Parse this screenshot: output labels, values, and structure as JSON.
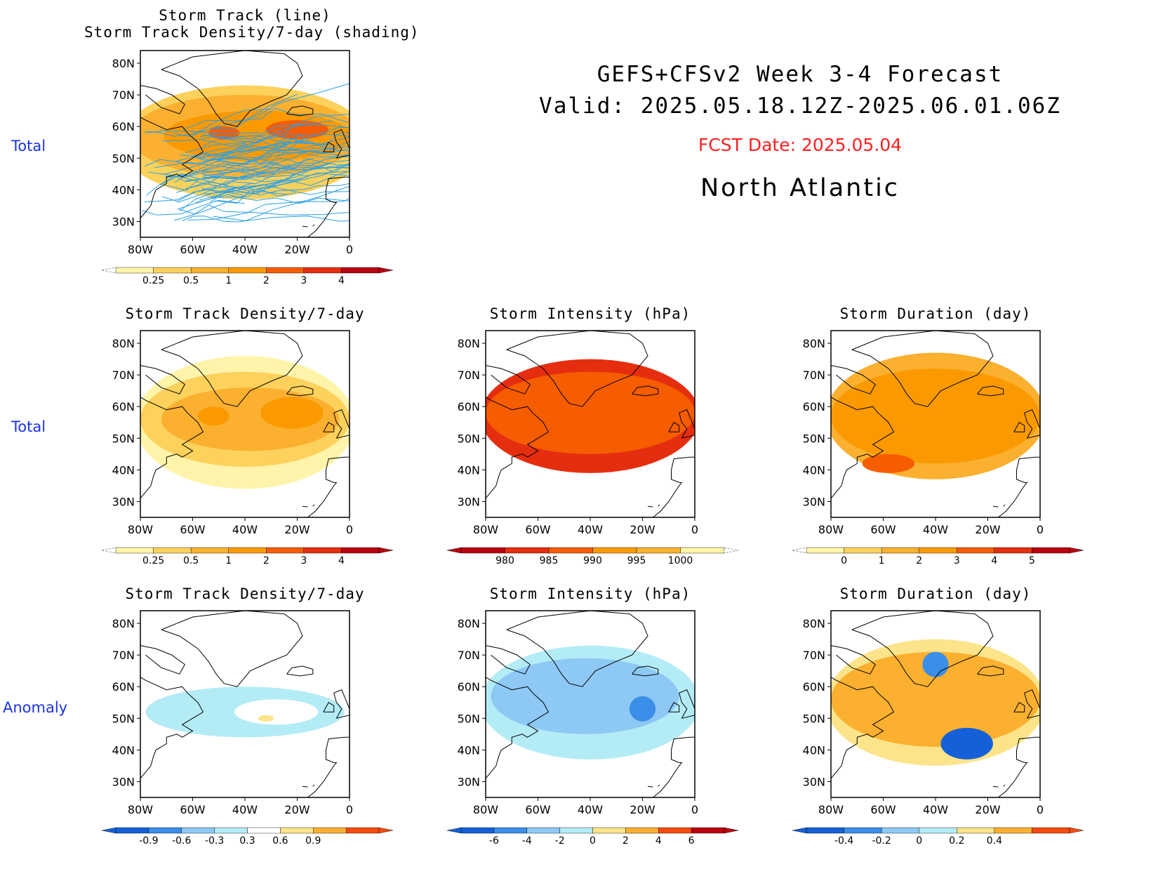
{
  "header": {
    "title": "GEFS+CFSv2 Week 3-4 Forecast",
    "valid": "Valid: 2025.05.18.12Z-2025.06.01.06Z",
    "fcst_date": "FCST Date: 2025.05.04",
    "region": "North Atlantic"
  },
  "row_labels": [
    "Total",
    "Total",
    "Anomaly"
  ],
  "axis_labels": {
    "lat": [
      "80N",
      "70N",
      "60N",
      "50N",
      "40N",
      "30N"
    ],
    "lon": [
      "80W",
      "60W",
      "40W",
      "20W",
      "0"
    ]
  },
  "colors": {
    "row_label": "#1a33e6",
    "fcst_date": "#ff2020",
    "track_line": "#2aa0e8"
  },
  "chart_data": [
    {
      "type": "heatmap",
      "title": "Storm Track (line)\nStorm Track Density/7-day (shading)",
      "row": 0,
      "col": 0,
      "xlabel": "",
      "ylabel": "",
      "xlim": [
        -80,
        0
      ],
      "ylim": [
        25,
        84
      ],
      "blobs": [
        {
          "lon": -40,
          "lat": 55,
          "rx": 48,
          "ry": 18,
          "level": 1
        },
        {
          "lon": -40,
          "lat": 57,
          "rx": 44,
          "ry": 13,
          "level": 2
        },
        {
          "lon": -35,
          "lat": 57,
          "rx": 36,
          "ry": 8,
          "level": 3
        },
        {
          "lon": -20,
          "lat": 59,
          "rx": 12,
          "ry": 3,
          "level": 4
        },
        {
          "lon": -48,
          "lat": 58,
          "rx": 6,
          "ry": 2,
          "level": 4
        }
      ],
      "tracks": true,
      "colorbar": {
        "labels": [
          "0.25",
          "0.5",
          "1",
          "2",
          "3",
          "4"
        ],
        "colors": [
          "#fff4aa",
          "#fcd15c",
          "#fbb030",
          "#fa9a00",
          "#f65c00",
          "#e52e10",
          "#b80010"
        ],
        "dashed_left": true
      }
    },
    {
      "type": "heatmap",
      "title": "Storm Track Density/7-day",
      "row": 1,
      "col": 0,
      "xlabel": "",
      "ylabel": "",
      "xlim": [
        -80,
        0
      ],
      "ylim": [
        25,
        84
      ],
      "blobs": [
        {
          "lon": -40,
          "lat": 55,
          "rx": 42,
          "ry": 21,
          "level": 0
        },
        {
          "lon": -40,
          "lat": 56,
          "rx": 40,
          "ry": 15,
          "level": 1
        },
        {
          "lon": -38,
          "lat": 56,
          "rx": 34,
          "ry": 10,
          "level": 2
        },
        {
          "lon": -22,
          "lat": 58,
          "rx": 12,
          "ry": 5,
          "level": 3
        },
        {
          "lon": -52,
          "lat": 57,
          "rx": 6,
          "ry": 3,
          "level": 3
        }
      ],
      "colorbar": {
        "labels": [
          "0.25",
          "0.5",
          "1",
          "2",
          "3",
          "4"
        ],
        "colors": [
          "#fff4aa",
          "#fcd15c",
          "#fbb030",
          "#fa9a00",
          "#f65c00",
          "#e52e10",
          "#b80010"
        ],
        "dashed_left": true
      }
    },
    {
      "type": "heatmap",
      "title": "Storm Intensity (hPa)",
      "row": 1,
      "col": 1,
      "xlabel": "",
      "ylabel": "",
      "xlim": [
        -80,
        0
      ],
      "ylim": [
        25,
        84
      ],
      "blobs": [
        {
          "lon": -40,
          "lat": 57,
          "rx": 42,
          "ry": 18,
          "level": 1
        },
        {
          "lon": -40,
          "lat": 58,
          "rx": 40,
          "ry": 13,
          "level": 2
        }
      ],
      "colorbar": {
        "labels": [
          "980",
          "985",
          "990",
          "995",
          "1000"
        ],
        "colors": [
          "#b80010",
          "#e52e10",
          "#f65c00",
          "#fa9a00",
          "#fbb030",
          "#fff4aa"
        ],
        "dashed_right": true
      }
    },
    {
      "type": "heatmap",
      "title": "Storm Duration (day)",
      "row": 1,
      "col": 2,
      "xlabel": "",
      "ylabel": "",
      "xlim": [
        -80,
        0
      ],
      "ylim": [
        25,
        84
      ],
      "blobs": [
        {
          "lon": -40,
          "lat": 57,
          "rx": 42,
          "ry": 20,
          "level": 2
        },
        {
          "lon": -40,
          "lat": 57,
          "rx": 40,
          "ry": 15,
          "level": 3
        },
        {
          "lon": -58,
          "lat": 42,
          "rx": 10,
          "ry": 3,
          "level": 4
        }
      ],
      "colorbar": {
        "labels": [
          "0",
          "1",
          "2",
          "3",
          "4",
          "5"
        ],
        "colors": [
          "#fff4aa",
          "#fcd15c",
          "#fbb030",
          "#fa9a00",
          "#f65c00",
          "#e52e10",
          "#b80010"
        ],
        "dashed_left": true
      }
    },
    {
      "type": "heatmap",
      "title": "Storm Track Density/7-day",
      "row": 2,
      "col": 0,
      "xlabel": "",
      "ylabel": "",
      "xlim": [
        -80,
        0
      ],
      "ylim": [
        25,
        84
      ],
      "blobs": [
        {
          "lon": -40,
          "lat": 52,
          "rx": 38,
          "ry": 8,
          "level": 3
        },
        {
          "lon": -28,
          "lat": 52,
          "rx": 16,
          "ry": 4,
          "level": 4
        },
        {
          "lon": -32,
          "lat": 50,
          "rx": 3,
          "ry": 1,
          "level": 5
        }
      ],
      "colorbar": {
        "labels": [
          "-0.9",
          "-0.6",
          "-0.3",
          "0.3",
          "0.6",
          "0.9"
        ],
        "colors": [
          "#1560d8",
          "#3b8fe8",
          "#8ec8f5",
          "#b4ecf6",
          "#ffffff",
          "#fde48a",
          "#fbb030",
          "#f64a10"
        ]
      }
    },
    {
      "type": "heatmap",
      "title": "Storm Intensity (hPa)",
      "row": 2,
      "col": 1,
      "xlabel": "",
      "ylabel": "",
      "xlim": [
        -80,
        0
      ],
      "ylim": [
        25,
        84
      ],
      "blobs": [
        {
          "lon": -40,
          "lat": 55,
          "rx": 42,
          "ry": 18,
          "level": 3
        },
        {
          "lon": -42,
          "lat": 57,
          "rx": 36,
          "ry": 12,
          "level": 2
        },
        {
          "lon": -20,
          "lat": 53,
          "rx": 5,
          "ry": 4,
          "level": 1
        }
      ],
      "colorbar": {
        "labels": [
          "-6",
          "-4",
          "-2",
          "0",
          "2",
          "4",
          "6"
        ],
        "colors": [
          "#1560d8",
          "#3b8fe8",
          "#8ec8f5",
          "#b4ecf6",
          "#fde48a",
          "#fbb030",
          "#f64a10",
          "#b80010"
        ]
      }
    },
    {
      "type": "heatmap",
      "title": "Storm Duration (day)",
      "row": 2,
      "col": 2,
      "xlabel": "",
      "ylabel": "",
      "xlim": [
        -80,
        0
      ],
      "ylim": [
        25,
        84
      ],
      "blobs": [
        {
          "lon": -40,
          "lat": 55,
          "rx": 42,
          "ry": 20,
          "level": 4
        },
        {
          "lon": -40,
          "lat": 56,
          "rx": 40,
          "ry": 15,
          "level": 5
        },
        {
          "lon": -28,
          "lat": 42,
          "rx": 10,
          "ry": 5,
          "level": 0
        },
        {
          "lon": -40,
          "lat": 67,
          "rx": 5,
          "ry": 4,
          "level": 1
        }
      ],
      "colorbar": {
        "labels": [
          "-0.4",
          "-0.2",
          "0",
          "0.2",
          "0.4"
        ],
        "colors": [
          "#1560d8",
          "#3b8fe8",
          "#8ec8f5",
          "#b4ecf6",
          "#fde48a",
          "#fbb030",
          "#f64a10"
        ]
      }
    }
  ]
}
